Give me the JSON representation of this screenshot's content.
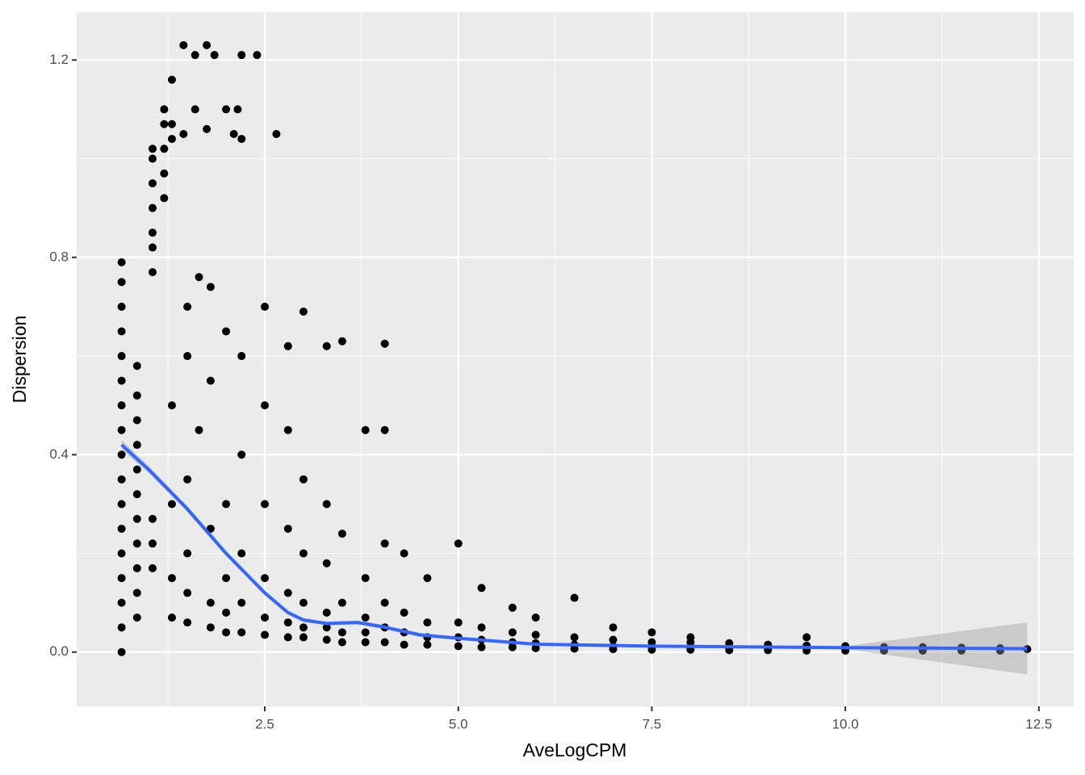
{
  "chart_data": {
    "type": "scatter",
    "x_label": "AveLogCPM",
    "y_label": "Dispersion",
    "xlim": [
      0.07,
      12.95
    ],
    "ylim": [
      -0.11,
      1.297
    ],
    "xticks": [
      2.5,
      {
        "value": 5,
        "label": "5.0"
      },
      {
        "value": 7.5,
        "label": "7.5"
      },
      {
        "value": 10,
        "label": "10.0"
      },
      12.5
    ],
    "yticks": [
      {
        "value": 0,
        "label": "0.0"
      },
      0.4,
      0.8,
      1.2
    ],
    "grid": true,
    "points": {
      "color": "#000000",
      "x": [
        0.65,
        0.65,
        0.65,
        0.65,
        0.65,
        0.65,
        0.65,
        0.65,
        0.65,
        0.65,
        0.65,
        0.65,
        0.65,
        0.65,
        0.65,
        0.65,
        0.65,
        0.85,
        0.85,
        0.85,
        0.85,
        0.85,
        0.85,
        0.85,
        0.85,
        0.85,
        0.85,
        0.85,
        1.05,
        1.05,
        1.05,
        1.05,
        1.05,
        1.05,
        1.05,
        1.05,
        1.05,
        1.05,
        1.2,
        1.2,
        1.2,
        1.2,
        1.2,
        1.3,
        1.3,
        1.3,
        1.45,
        1.45,
        1.6,
        1.6,
        1.75,
        1.75,
        1.85,
        2.0,
        2.1,
        2.2,
        2.2,
        2.4,
        2.65,
        2.15,
        1.3,
        1.3,
        1.3,
        1.3,
        1.5,
        1.5,
        1.5,
        1.5,
        1.5,
        1.5,
        1.65,
        1.65,
        1.8,
        1.8,
        1.8,
        1.8,
        1.8,
        2.0,
        2.0,
        2.0,
        2.0,
        2.0,
        2.2,
        2.2,
        2.2,
        2.2,
        2.2,
        2.5,
        2.5,
        2.5,
        2.5,
        2.5,
        2.5,
        2.8,
        2.8,
        2.8,
        2.8,
        2.8,
        2.8,
        3.0,
        3.0,
        3.0,
        3.0,
        3.0,
        3.0,
        3.3,
        3.3,
        3.3,
        3.3,
        3.3,
        3.3,
        3.5,
        3.5,
        3.5,
        3.5,
        3.5,
        3.8,
        3.8,
        3.8,
        3.8,
        3.8,
        4.05,
        4.05,
        4.05,
        4.05,
        4.05,
        4.05,
        4.3,
        4.3,
        4.3,
        4.3,
        4.6,
        4.6,
        4.6,
        4.6,
        5.0,
        5.0,
        5.0,
        5.0,
        5.3,
        5.3,
        5.3,
        5.3,
        5.7,
        5.7,
        5.7,
        5.7,
        6.0,
        6.0,
        6.0,
        6.0,
        6.5,
        6.5,
        6.5,
        6.5,
        7.0,
        7.0,
        7.0,
        7.0,
        7.5,
        7.5,
        7.5,
        7.5,
        8.0,
        8.0,
        8.0,
        8.0,
        8.5,
        8.5,
        8.5,
        9.0,
        9.0,
        9.0,
        9.5,
        9.5,
        9.5,
        9.5,
        10.0,
        10.0,
        10.0,
        10.5,
        10.5,
        10.5,
        11.0,
        11.0,
        11.0,
        11.5,
        11.5,
        11.5,
        12.0,
        12.0,
        12.0,
        12.35
      ],
      "y": [
        0,
        0.05,
        0.1,
        0.15,
        0.2,
        0.25,
        0.3,
        0.35,
        0.4,
        0.45,
        0.5,
        0.55,
        0.6,
        0.65,
        0.7,
        0.75,
        0.79,
        0.07,
        0.12,
        0.17,
        0.22,
        0.27,
        0.32,
        0.37,
        0.42,
        0.47,
        0.52,
        0.58,
        0.17,
        0.22,
        0.27,
        0.77,
        0.82,
        0.85,
        0.9,
        0.95,
        1.0,
        1.02,
        0.92,
        0.97,
        1.02,
        1.07,
        1.1,
        1.16,
        1.04,
        1.07,
        1.23,
        1.05,
        1.21,
        1.1,
        1.23,
        1.06,
        1.21,
        1.1,
        1.05,
        1.21,
        1.04,
        1.21,
        1.05,
        1.1,
        0.07,
        0.15,
        0.3,
        0.5,
        0.06,
        0.12,
        0.2,
        0.35,
        0.6,
        0.7,
        0.76,
        0.45,
        0.05,
        0.1,
        0.25,
        0.55,
        0.74,
        0.04,
        0.08,
        0.15,
        0.3,
        0.65,
        0.04,
        0.1,
        0.2,
        0.4,
        0.6,
        0.035,
        0.07,
        0.15,
        0.3,
        0.5,
        0.7,
        0.03,
        0.06,
        0.12,
        0.25,
        0.45,
        0.62,
        0.03,
        0.05,
        0.1,
        0.2,
        0.35,
        0.69,
        0.025,
        0.05,
        0.08,
        0.18,
        0.3,
        0.62,
        0.02,
        0.04,
        0.1,
        0.24,
        0.63,
        0.02,
        0.04,
        0.07,
        0.15,
        0.45,
        0.02,
        0.05,
        0.1,
        0.22,
        0.45,
        0.625,
        0.015,
        0.04,
        0.08,
        0.2,
        0.015,
        0.03,
        0.06,
        0.15,
        0.012,
        0.03,
        0.06,
        0.22,
        0.01,
        0.025,
        0.05,
        0.13,
        0.01,
        0.02,
        0.04,
        0.09,
        0.008,
        0.018,
        0.035,
        0.07,
        0.007,
        0.015,
        0.03,
        0.11,
        0.006,
        0.012,
        0.025,
        0.05,
        0.005,
        0.01,
        0.02,
        0.04,
        0.005,
        0.01,
        0.02,
        0.03,
        0.004,
        0.009,
        0.018,
        0.004,
        0.008,
        0.015,
        0.003,
        0.007,
        0.013,
        0.03,
        0.003,
        0.006,
        0.012,
        0.003,
        0.006,
        0.01,
        0.003,
        0.005,
        0.01,
        0.003,
        0.005,
        0.009,
        0.003,
        0.005,
        0.008,
        0.006
      ]
    },
    "smooth": {
      "color": "#3366ff",
      "band_color": "#999999",
      "x": [
        0.65,
        1.0,
        1.5,
        2.0,
        2.5,
        2.8,
        3.0,
        3.3,
        3.7,
        4.0,
        4.5,
        5.0,
        6.0,
        7.5,
        10,
        12.35
      ],
      "y": [
        0.42,
        0.37,
        0.29,
        0.2,
        0.12,
        0.08,
        0.065,
        0.058,
        0.06,
        0.052,
        0.035,
        0.028,
        0.016,
        0.012,
        0.009,
        0.007
      ],
      "ci_lower": [
        0.41,
        0.363,
        0.284,
        0.195,
        0.116,
        0.076,
        0.061,
        0.054,
        0.056,
        0.048,
        0.031,
        0.025,
        0.014,
        0.01,
        0.006,
        -0.045
      ],
      "ci_upper": [
        0.43,
        0.377,
        0.296,
        0.205,
        0.124,
        0.084,
        0.069,
        0.062,
        0.064,
        0.056,
        0.039,
        0.031,
        0.018,
        0.014,
        0.012,
        0.06
      ]
    }
  }
}
